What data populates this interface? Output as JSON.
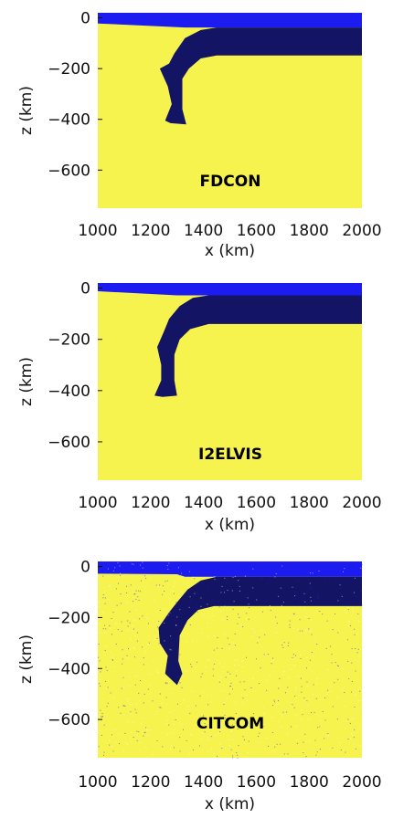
{
  "colors": {
    "background_material": "#f6f34f",
    "upper_layer": "#1c1cf0",
    "slab": "#141464",
    "axis": "#111111"
  },
  "chart_data": [
    {
      "type": "heatmap",
      "title": "FDCON",
      "xlabel": "x (km)",
      "ylabel": "z (km)",
      "xlim": [
        1000,
        2000
      ],
      "ylim": [
        -750,
        20
      ],
      "xticks": [
        "1000",
        "1200",
        "1400",
        "1600",
        "1800",
        "2000"
      ],
      "yticks": [
        "0",
        "−200",
        "−400",
        "−600"
      ],
      "ytick_values": [
        0,
        -200,
        -400,
        -600
      ],
      "upper_layer_outline": [
        [
          1000,
          20
        ],
        [
          2000,
          20
        ],
        [
          2000,
          -38
        ],
        [
          1330,
          -38
        ],
        [
          1000,
          -22
        ]
      ],
      "slab_outline": [
        [
          2000,
          -38
        ],
        [
          1450,
          -38
        ],
        [
          1390,
          -48
        ],
        [
          1330,
          -80
        ],
        [
          1290,
          -140
        ],
        [
          1270,
          -180
        ],
        [
          1235,
          -200
        ],
        [
          1265,
          -270
        ],
        [
          1280,
          -340
        ],
        [
          1255,
          -405
        ],
        [
          1275,
          -415
        ],
        [
          1335,
          -420
        ],
        [
          1320,
          -360
        ],
        [
          1320,
          -240
        ],
        [
          1345,
          -200
        ],
        [
          1390,
          -160
        ],
        [
          1450,
          -148
        ],
        [
          2000,
          -148
        ]
      ]
    },
    {
      "type": "heatmap",
      "title": "I2ELVIS",
      "xlabel": "x (km)",
      "ylabel": "z (km)",
      "xlim": [
        1000,
        2000
      ],
      "ylim": [
        -750,
        20
      ],
      "xticks": [
        "1000",
        "1200",
        "1400",
        "1600",
        "1800",
        "2000"
      ],
      "yticks": [
        "0",
        "−200",
        "−400",
        "−600"
      ],
      "ytick_values": [
        0,
        -200,
        -400,
        -600
      ],
      "upper_layer_outline": [
        [
          1000,
          20
        ],
        [
          2000,
          20
        ],
        [
          2000,
          -28
        ],
        [
          1300,
          -28
        ],
        [
          1000,
          -12
        ]
      ],
      "slab_outline": [
        [
          2000,
          -28
        ],
        [
          1420,
          -28
        ],
        [
          1360,
          -38
        ],
        [
          1310,
          -70
        ],
        [
          1270,
          -120
        ],
        [
          1250,
          -170
        ],
        [
          1225,
          -230
        ],
        [
          1240,
          -300
        ],
        [
          1240,
          -360
        ],
        [
          1215,
          -420
        ],
        [
          1245,
          -425
        ],
        [
          1300,
          -420
        ],
        [
          1290,
          -360
        ],
        [
          1290,
          -260
        ],
        [
          1310,
          -200
        ],
        [
          1350,
          -160
        ],
        [
          1420,
          -140
        ],
        [
          2000,
          -140
        ]
      ]
    },
    {
      "type": "heatmap",
      "title": "CITCOM",
      "xlabel": "x (km)",
      "ylabel": "z (km)",
      "xlim": [
        1000,
        2000
      ],
      "ylim": [
        -750,
        20
      ],
      "xticks": [
        "1000",
        "1200",
        "1400",
        "1600",
        "1800",
        "2000"
      ],
      "yticks": [
        "0",
        "−200",
        "−400",
        "−600"
      ],
      "ytick_values": [
        0,
        -200,
        -400,
        -600
      ],
      "upper_layer_outline": [
        [
          1000,
          20
        ],
        [
          2000,
          20
        ],
        [
          2000,
          -40
        ],
        [
          1330,
          -40
        ],
        [
          1300,
          -30
        ],
        [
          1000,
          -28
        ]
      ],
      "slab_outline": [
        [
          2000,
          -40
        ],
        [
          1450,
          -40
        ],
        [
          1390,
          -55
        ],
        [
          1340,
          -90
        ],
        [
          1300,
          -140
        ],
        [
          1270,
          -180
        ],
        [
          1230,
          -240
        ],
        [
          1235,
          -300
        ],
        [
          1265,
          -350
        ],
        [
          1255,
          -420
        ],
        [
          1300,
          -465
        ],
        [
          1320,
          -420
        ],
        [
          1305,
          -370
        ],
        [
          1310,
          -270
        ],
        [
          1340,
          -210
        ],
        [
          1380,
          -170
        ],
        [
          1440,
          -155
        ],
        [
          2000,
          -155
        ]
      ]
    }
  ]
}
